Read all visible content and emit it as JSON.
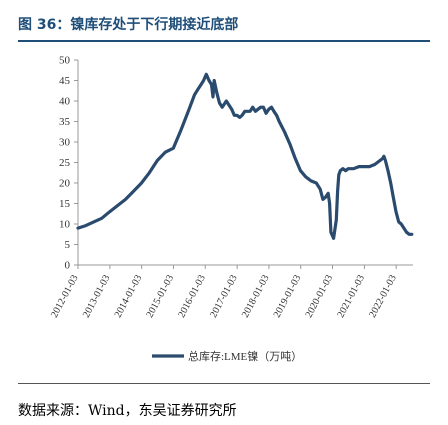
{
  "figure": {
    "title": "图 36：镍库存处于下行期接近底部",
    "source": "数据来源：Wind，东吴证券研究所"
  },
  "chart_data": {
    "type": "line",
    "title": "",
    "xlabel": "",
    "ylabel": "",
    "ylim": [
      0,
      50
    ],
    "yticks": [
      0,
      5,
      10,
      15,
      20,
      25,
      30,
      35,
      40,
      45,
      50
    ],
    "xlim": [
      "2012-01-03",
      "2022-07-15"
    ],
    "xticks": [
      "2012-01-03",
      "2013-01-03",
      "2014-01-03",
      "2015-01-03",
      "2016-01-03",
      "2017-01-03",
      "2018-01-03",
      "2019-01-03",
      "2020-01-03",
      "2021-01-03",
      "2022-01-03"
    ],
    "grid": false,
    "legend_position": "bottom",
    "color": "#2a4a6e",
    "series": [
      {
        "name": "总库存:LME镍（万吨）",
        "x": [
          "2012-01-03",
          "2012-04-01",
          "2012-07-01",
          "2012-10-01",
          "2013-01-01",
          "2013-04-01",
          "2013-07-01",
          "2013-10-01",
          "2014-01-01",
          "2014-04-01",
          "2014-07-01",
          "2014-10-01",
          "2015-01-01",
          "2015-04-01",
          "2015-07-01",
          "2015-09-01",
          "2015-10-15",
          "2015-11-15",
          "2015-12-15",
          "2016-01-15",
          "2016-02-15",
          "2016-03-15",
          "2016-04-01",
          "2016-04-15",
          "2016-05-15",
          "2016-06-15",
          "2016-07-15",
          "2016-09-01",
          "2016-10-01",
          "2016-11-01",
          "2016-12-01",
          "2017-01-01",
          "2017-02-01",
          "2017-03-01",
          "2017-04-01",
          "2017-05-01",
          "2017-06-01",
          "2017-07-01",
          "2017-08-01",
          "2017-09-01",
          "2017-10-01",
          "2017-11-01",
          "2017-12-01",
          "2018-01-01",
          "2018-02-01",
          "2018-03-01",
          "2018-04-01",
          "2018-05-01",
          "2018-07-01",
          "2018-09-01",
          "2018-11-01",
          "2019-01-01",
          "2019-03-01",
          "2019-05-01",
          "2019-07-01",
          "2019-08-15",
          "2019-09-15",
          "2019-10-15",
          "2019-11-15",
          "2019-12-01",
          "2019-12-15",
          "2020-01-15",
          "2020-02-15",
          "2020-03-01",
          "2020-03-15",
          "2020-04-01",
          "2020-05-01",
          "2020-06-01",
          "2020-07-01",
          "2020-09-01",
          "2020-11-01",
          "2021-01-01",
          "2021-03-01",
          "2021-05-01",
          "2021-07-01",
          "2021-08-01",
          "2021-08-15",
          "2021-09-01",
          "2021-10-01",
          "2021-11-01",
          "2021-12-01",
          "2022-01-01",
          "2022-02-01",
          "2022-03-01",
          "2022-04-01",
          "2022-05-01",
          "2022-06-01",
          "2022-07-01"
        ],
        "values": [
          9,
          9.6,
          10.5,
          11.4,
          13,
          14.5,
          16,
          18,
          20,
          22.5,
          25.5,
          27.5,
          28.5,
          33,
          38,
          41.5,
          43,
          44,
          45,
          46.5,
          45,
          44,
          41,
          45,
          42,
          39.5,
          38.5,
          40,
          39,
          38,
          36.5,
          36.5,
          36,
          36.5,
          37.5,
          37.5,
          37.5,
          38.5,
          37.5,
          38,
          38.5,
          38.5,
          37,
          38,
          38.5,
          37.5,
          36.5,
          35,
          32.5,
          29.5,
          26,
          23,
          21.5,
          20.5,
          20,
          18.5,
          16,
          16.5,
          17.5,
          15,
          8,
          6.5,
          11,
          18,
          22,
          23,
          23.5,
          23,
          23.5,
          23.5,
          24,
          24,
          24,
          24.5,
          25.5,
          26,
          26.5,
          25.5,
          23,
          20,
          16.5,
          13,
          10.5,
          10,
          9,
          8,
          7.5,
          7.5
        ]
      }
    ]
  }
}
